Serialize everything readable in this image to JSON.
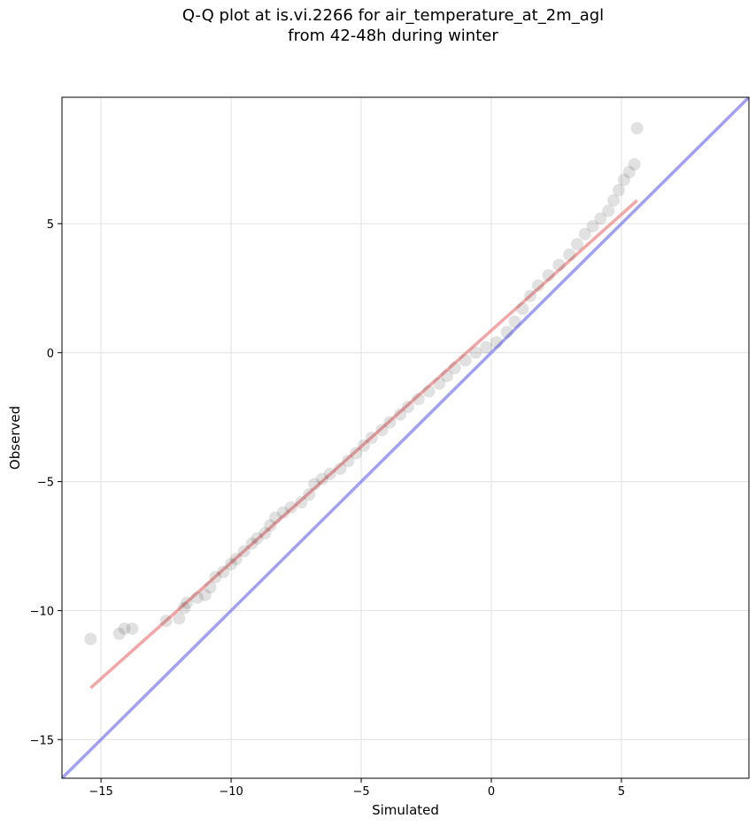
{
  "chart_data": {
    "type": "scatter",
    "title_line1": "Q-Q plot at is.vi.2266 for air_temperature_at_2m_agl",
    "title_line2": "from 42-48h during winter",
    "xlabel": "Simulated",
    "ylabel": "Observed",
    "xlim": [
      -16.5,
      9.9
    ],
    "ylim": [
      -16.5,
      9.9
    ],
    "xticks": [
      -15,
      -10,
      -5,
      0,
      5
    ],
    "yticks": [
      -15,
      -10,
      -5,
      0,
      5
    ],
    "xtick_labels": [
      "−15",
      "−10",
      "−5",
      "0",
      "5"
    ],
    "ytick_labels": [
      "−15",
      "−10",
      "−5",
      "0",
      "5"
    ],
    "grid": true,
    "colors": {
      "points": "#333333",
      "fit_line": "#f08080",
      "identity_line": "#8080f0"
    },
    "fit_line": {
      "x": [
        -15.4,
        5.6
      ],
      "y": [
        -13.0,
        5.9
      ]
    },
    "identity_line": {
      "x": [
        -16.5,
        9.9
      ],
      "y": [
        -16.5,
        9.9
      ]
    },
    "quantiles": [
      [
        -15.4,
        -11.1
      ],
      [
        -14.3,
        -10.9
      ],
      [
        -14.1,
        -10.7
      ],
      [
        -13.8,
        -10.7
      ],
      [
        -12.5,
        -10.4
      ],
      [
        -12.0,
        -10.3
      ],
      [
        -11.8,
        -9.9
      ],
      [
        -11.7,
        -9.7
      ],
      [
        -11.3,
        -9.5
      ],
      [
        -11.0,
        -9.4
      ],
      [
        -10.8,
        -9.1
      ],
      [
        -10.6,
        -8.7
      ],
      [
        -10.3,
        -8.5
      ],
      [
        -10.0,
        -8.2
      ],
      [
        -9.8,
        -8.0
      ],
      [
        -9.5,
        -7.7
      ],
      [
        -9.2,
        -7.4
      ],
      [
        -9.0,
        -7.2
      ],
      [
        -8.7,
        -7.0
      ],
      [
        -8.5,
        -6.7
      ],
      [
        -8.3,
        -6.4
      ],
      [
        -8.0,
        -6.2
      ],
      [
        -7.7,
        -6.0
      ],
      [
        -7.3,
        -5.8
      ],
      [
        -7.0,
        -5.5
      ],
      [
        -6.8,
        -5.1
      ],
      [
        -6.5,
        -4.9
      ],
      [
        -6.2,
        -4.7
      ],
      [
        -5.8,
        -4.5
      ],
      [
        -5.5,
        -4.2
      ],
      [
        -5.2,
        -3.9
      ],
      [
        -4.9,
        -3.6
      ],
      [
        -4.6,
        -3.3
      ],
      [
        -4.2,
        -3.0
      ],
      [
        -3.9,
        -2.7
      ],
      [
        -3.5,
        -2.4
      ],
      [
        -3.2,
        -2.1
      ],
      [
        -2.8,
        -1.8
      ],
      [
        -2.4,
        -1.5
      ],
      [
        -2.0,
        -1.2
      ],
      [
        -1.7,
        -0.9
      ],
      [
        -1.4,
        -0.6
      ],
      [
        -1.0,
        -0.3
      ],
      [
        -0.6,
        0.0
      ],
      [
        -0.2,
        0.2
      ],
      [
        0.2,
        0.4
      ],
      [
        0.6,
        0.8
      ],
      [
        0.9,
        1.2
      ],
      [
        1.2,
        1.7
      ],
      [
        1.5,
        2.2
      ],
      [
        1.8,
        2.6
      ],
      [
        2.2,
        3.0
      ],
      [
        2.6,
        3.4
      ],
      [
        3.0,
        3.8
      ],
      [
        3.3,
        4.2
      ],
      [
        3.6,
        4.6
      ],
      [
        3.9,
        4.9
      ],
      [
        4.2,
        5.2
      ],
      [
        4.5,
        5.5
      ],
      [
        4.7,
        5.9
      ],
      [
        4.9,
        6.3
      ],
      [
        5.1,
        6.7
      ],
      [
        5.3,
        7.0
      ],
      [
        5.5,
        7.3
      ],
      [
        5.6,
        8.7
      ]
    ]
  }
}
